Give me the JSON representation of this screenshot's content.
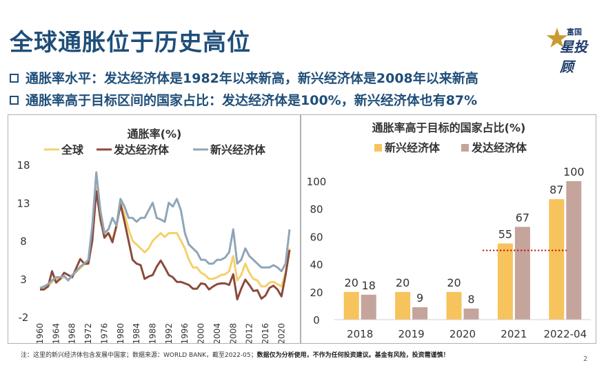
{
  "slide": {
    "title": "全球通胀位于历史高位",
    "logo_top": "富国",
    "logo_main": "星投顾",
    "bullet1": "通胀率水平：发达经济体是1982年以来新高，新兴经济体是2008年以来新高",
    "bullet2": "通胀率高于目标区间的国家占比：发达经济体是100%，新兴经济体也有87%",
    "footnote_a": "注：这里的新兴经济体包含发展中国家；数据来源：WORLD BANK，截至2022-05；",
    "footnote_b": "数据仅为分析使用，不作为任何投资建议。基金有风险，投资需谨慎！",
    "page": "2"
  },
  "colors": {
    "title": "#1f4e79",
    "global": "#f5d06a",
    "developed": "#8b4a3c",
    "emerging": "#8fa5b8",
    "bar_emerging": "#f7c35c",
    "bar_developed": "#c5a49c",
    "target_line": "#c00000"
  },
  "chart_data": [
    {
      "type": "line",
      "title": "通胀率(%)",
      "legend": [
        "全球",
        "发达经济体",
        "新兴经济体"
      ],
      "y_ticks": [
        "18",
        "13",
        "8",
        "3",
        "-2"
      ],
      "ylim": [
        -2,
        18
      ],
      "x_ticks": [
        "1960",
        "1964",
        "1968",
        "1972",
        "1976",
        "1980",
        "1984",
        "1988",
        "1992",
        "1996",
        "2000",
        "2004",
        "2008",
        "2012",
        "2016",
        "2020"
      ],
      "x": [
        1960,
        1961,
        1962,
        1963,
        1964,
        1965,
        1966,
        1967,
        1968,
        1969,
        1970,
        1971,
        1972,
        1973,
        1974,
        1975,
        1976,
        1977,
        1978,
        1979,
        1980,
        1981,
        1982,
        1983,
        1984,
        1985,
        1986,
        1987,
        1988,
        1989,
        1990,
        1991,
        1992,
        1993,
        1994,
        1995,
        1996,
        1997,
        1998,
        1999,
        2000,
        2001,
        2002,
        2003,
        2004,
        2005,
        2006,
        2007,
        2008,
        2009,
        2010,
        2011,
        2012,
        2013,
        2014,
        2015,
        2016,
        2017,
        2018,
        2019,
        2020,
        2021,
        2022
      ],
      "series": [
        {
          "name": "全球",
          "values": [
            1.6,
            1.7,
            2.0,
            2.6,
            3.0,
            2.9,
            3.3,
            2.8,
            3.4,
            3.9,
            4.4,
            4.9,
            5.0,
            9.0,
            15.0,
            10.5,
            8.8,
            9.0,
            8.2,
            9.8,
            13.0,
            11.5,
            9.5,
            8.0,
            7.5,
            7.0,
            6.5,
            7.0,
            8.0,
            8.5,
            9.0,
            8.5,
            9.0,
            9.0,
            9.0,
            8.0,
            7.0,
            5.5,
            4.5,
            4.5,
            3.8,
            3.5,
            3.0,
            3.0,
            3.2,
            3.5,
            3.6,
            4.0,
            6.0,
            2.8,
            3.5,
            5.0,
            3.8,
            3.0,
            2.8,
            2.0,
            2.0,
            2.5,
            2.6,
            2.3,
            2.0,
            3.8,
            7.0
          ]
        },
        {
          "name": "发达经济体",
          "values": [
            1.6,
            1.6,
            2.0,
            4.0,
            2.5,
            3.0,
            3.8,
            3.5,
            3.2,
            4.4,
            5.6,
            5.0,
            5.0,
            8.0,
            14.5,
            11.0,
            8.4,
            9.0,
            7.8,
            10.0,
            12.8,
            10.5,
            8.0,
            5.5,
            5.0,
            4.8,
            3.0,
            3.3,
            3.5,
            4.6,
            5.4,
            4.5,
            3.5,
            3.2,
            2.6,
            2.6,
            2.4,
            2.2,
            1.7,
            1.7,
            2.4,
            2.3,
            1.6,
            2.0,
            2.3,
            2.4,
            2.4,
            2.2,
            3.6,
            0.3,
            1.7,
            2.9,
            2.2,
            1.4,
            1.5,
            0.4,
            0.8,
            1.8,
            2.1,
            1.6,
            0.7,
            3.5,
            6.8
          ]
        },
        {
          "name": "新兴经济体",
          "values": [
            1.8,
            2.0,
            2.3,
            2.8,
            3.2,
            3.2,
            3.4,
            2.8,
            3.5,
            4.0,
            4.6,
            5.0,
            5.5,
            10.0,
            17.0,
            12.0,
            9.0,
            9.5,
            11.0,
            10.0,
            13.5,
            12.5,
            11.0,
            11.0,
            10.5,
            11.0,
            11.0,
            12.0,
            13.0,
            11.0,
            10.8,
            10.5,
            13.0,
            12.5,
            13.5,
            12.0,
            9.0,
            7.5,
            7.0,
            6.5,
            5.5,
            5.5,
            5.0,
            5.0,
            5.5,
            5.5,
            5.8,
            6.5,
            9.5,
            5.0,
            5.5,
            7.0,
            6.0,
            5.5,
            5.0,
            4.5,
            4.5,
            4.5,
            4.8,
            4.5,
            4.0,
            5.0,
            9.5
          ]
        }
      ]
    },
    {
      "type": "bar",
      "title": "通胀率高于目标的国家占比(%)",
      "categories": [
        "2018",
        "2019",
        "2020",
        "2021",
        "2022-04"
      ],
      "series": [
        {
          "name": "新兴经济体",
          "values": [
            20,
            20,
            20,
            55,
            87
          ]
        },
        {
          "name": "发达经济体",
          "values": [
            18,
            9,
            8,
            67,
            100
          ]
        }
      ],
      "y_ticks": [
        "100",
        "80",
        "60",
        "40",
        "20",
        "0"
      ],
      "ylim": [
        0,
        100
      ],
      "reference_line": 50,
      "labels": [
        [
          "20",
          "18"
        ],
        [
          "20",
          "9"
        ],
        [
          "20",
          "8"
        ],
        [
          "55",
          "67"
        ],
        [
          "87",
          "100"
        ]
      ]
    }
  ]
}
